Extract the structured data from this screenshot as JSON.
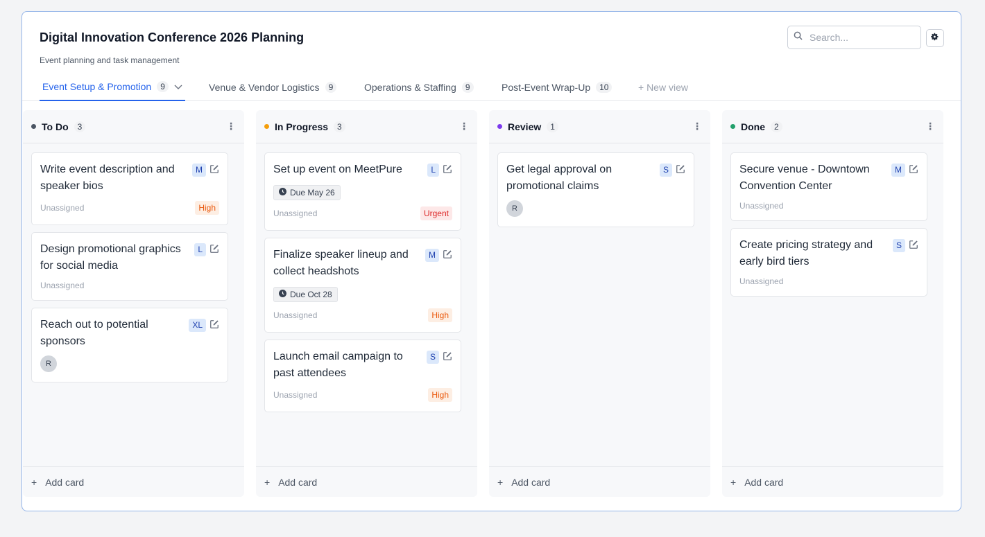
{
  "header": {
    "title": "Digital Innovation Conference 2026 Planning",
    "subtitle": "Event planning and task management",
    "search_placeholder": "Search..."
  },
  "tabs": [
    {
      "label": "Event Setup & Promotion",
      "count": "9",
      "active": true
    },
    {
      "label": "Venue & Vendor Logistics",
      "count": "9"
    },
    {
      "label": "Operations & Staffing",
      "count": "9"
    },
    {
      "label": "Post-Event Wrap-Up",
      "count": "10"
    }
  ],
  "new_view": "+ New view",
  "add_card": "Add card",
  "colors": {
    "accent": "#2563eb",
    "todo": "#4b5563",
    "inprogress": "#f59e0b",
    "review": "#7c3aed",
    "done": "#22a06b"
  },
  "columns": [
    {
      "name": "To Do",
      "count": "3",
      "cards": [
        {
          "title": "Write event description and speaker bios",
          "size": "M",
          "assignee": "Unassigned",
          "priority": "High"
        },
        {
          "title": "Design promotional graphics for social media",
          "size": "L",
          "assignee": "Unassigned"
        },
        {
          "title": "Reach out to potential sponsors",
          "size": "XL",
          "avatar": "R"
        }
      ]
    },
    {
      "name": "In Progress",
      "count": "3",
      "cards": [
        {
          "title": "Set up event on MeetPure",
          "size": "L",
          "due": "Due May 26",
          "assignee": "Unassigned",
          "priority": "Urgent"
        },
        {
          "title": "Finalize speaker lineup and collect headshots",
          "size": "M",
          "due": "Due Oct 28",
          "assignee": "Unassigned",
          "priority": "High"
        },
        {
          "title": "Launch email campaign to past attendees",
          "size": "S",
          "assignee": "Unassigned",
          "priority": "High"
        }
      ]
    },
    {
      "name": "Review",
      "count": "1",
      "cards": [
        {
          "title": "Get legal approval on promotional claims",
          "size": "S",
          "avatar": "R"
        }
      ]
    },
    {
      "name": "Done",
      "count": "2",
      "cards": [
        {
          "title": "Secure venue - Downtown Convention Center",
          "size": "M",
          "assignee": "Unassigned"
        },
        {
          "title": "Create pricing strategy and early bird tiers",
          "size": "S",
          "assignee": "Unassigned"
        }
      ]
    }
  ]
}
